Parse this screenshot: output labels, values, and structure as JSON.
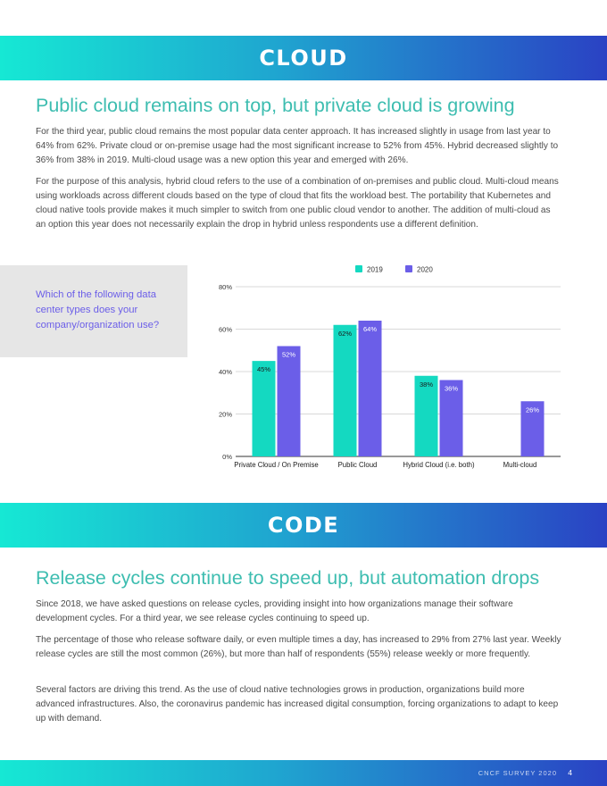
{
  "cloud": {
    "banner": "CLOUD",
    "heading": "Public cloud remains on top, but private cloud is growing",
    "paragraphs": [
      "For the third year, public cloud remains the most popular data center approach. It has increased slightly in usage from last year to 64% from 62%. Private cloud or on-premise usage had the most significant increase to 52% from 45%. Hybrid decreased slightly to 36% from 38% in 2019. Multi-cloud usage was a new option this year and emerged with 26%.",
      "For the purpose of this analysis, hybrid cloud refers to the use of a combination of on-premises and public cloud. Multi-cloud means using workloads across different clouds based on the type of cloud that fits the workload best. The portability that Kubernetes and cloud native tools provide makes it much simpler to switch from one public cloud vendor to another. The addition of multi-cloud as an option this year does not necessarily explain the drop in hybrid unless respondents use a different definition."
    ],
    "question": "Which of the following data center types does your company/organization use?"
  },
  "chart_data": {
    "type": "bar",
    "categories": [
      "Private Cloud / On Premise",
      "Public Cloud",
      "Hybrid Cloud (i.e. both)",
      "Multi-cloud"
    ],
    "series": [
      {
        "name": "2019",
        "values": [
          45,
          62,
          38,
          null
        ],
        "color": "#14d9c1"
      },
      {
        "name": "2020",
        "values": [
          52,
          64,
          36,
          26
        ],
        "color": "#6b5ee8"
      }
    ],
    "ylim": [
      0,
      80
    ],
    "yticks": [
      "0%",
      "20%",
      "40%",
      "60%",
      "80%"
    ],
    "data_labels": [
      [
        "45%",
        "62%",
        "38%",
        ""
      ],
      [
        "52%",
        "64%",
        "36%",
        "26%"
      ]
    ],
    "legend_position": "top-center",
    "grid": true
  },
  "code": {
    "banner": "CODE",
    "heading": "Release cycles continue to speed up, but automation drops",
    "paragraphs": [
      "Since 2018, we have asked questions on release cycles, providing insight into how organizations manage their software development cycles. For a third year, we see release cycles continuing to speed up.",
      "The percentage of those who release software daily, or even multiple times a day, has increased to 29% from 27% last year. Weekly release cycles are still the most common (26%), but more than half of respondents (55%) release weekly or more frequently.",
      "Several factors are driving this trend. As the use of cloud native technologies grows in production, organizations build more advanced infrastructures. Also, the coronavirus pandemic has increased digital consumption, forcing organizations to adapt to keep up with demand."
    ]
  },
  "footer": {
    "survey": "CNCF SURVEY 2020",
    "page": "4"
  }
}
